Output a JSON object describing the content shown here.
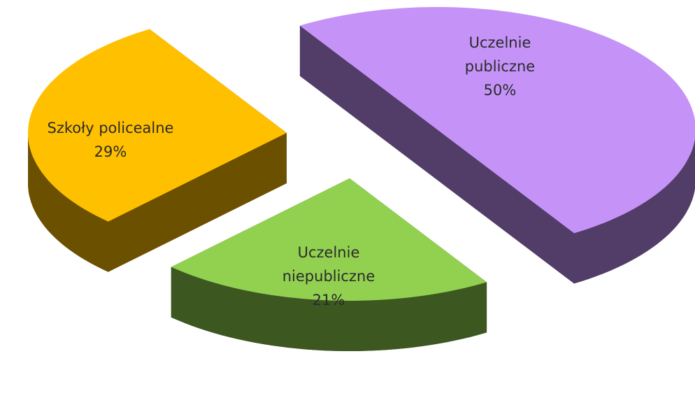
{
  "chart_data": {
    "type": "pie3d",
    "categories": [
      "Uczelnie publiczne",
      "Uczelnie niepubliczne",
      "Szkoły policealne"
    ],
    "values": [
      50,
      21,
      29
    ],
    "value_labels": [
      "50%",
      "21%",
      "29%"
    ],
    "colors": [
      "#c593f8",
      "#92d050",
      "#ffc000"
    ]
  }
}
